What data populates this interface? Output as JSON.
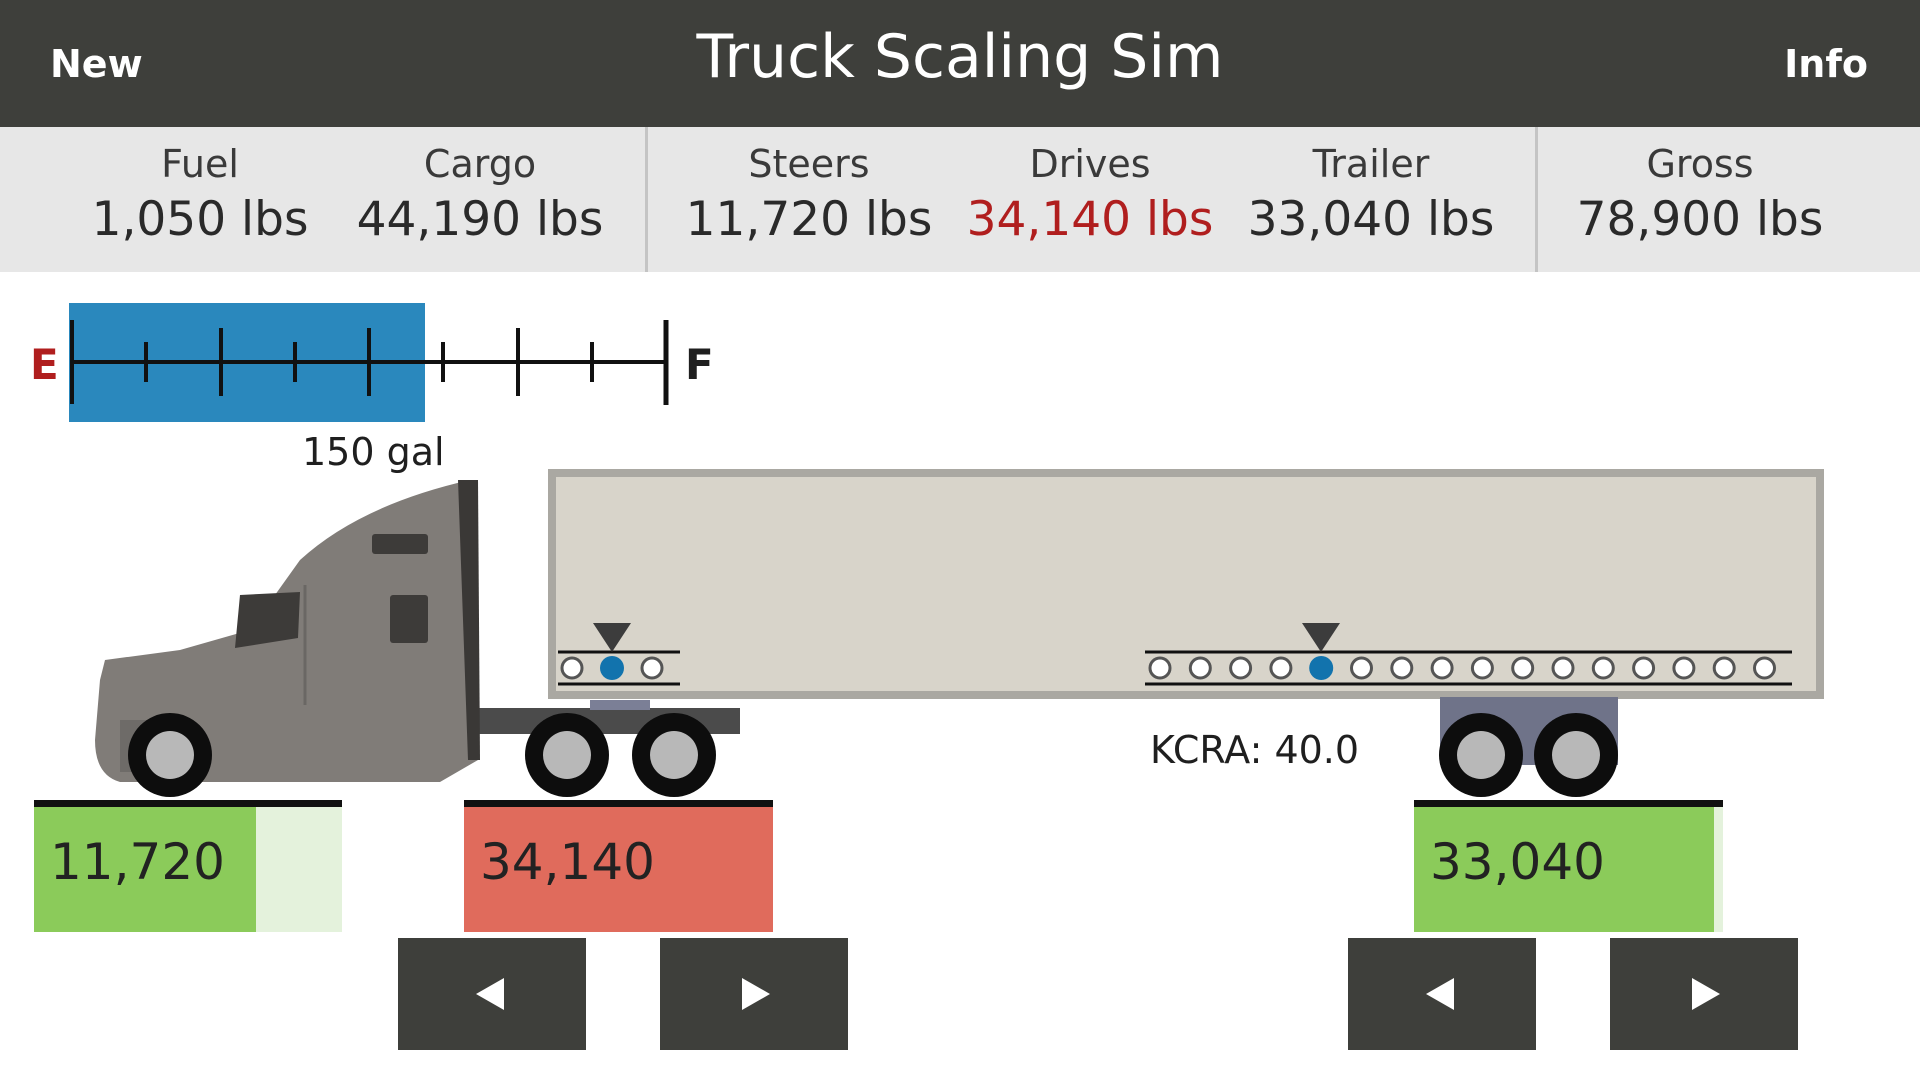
{
  "header": {
    "new_label": "New",
    "title": "Truck Scaling Sim",
    "info_label": "Info"
  },
  "stats": [
    {
      "label": "Fuel",
      "value": "1,050 lbs",
      "over": false
    },
    {
      "label": "Cargo",
      "value": "44,190 lbs",
      "over": false
    },
    {
      "label": "Steers",
      "value": "11,720 lbs",
      "over": false
    },
    {
      "label": "Drives",
      "value": "34,140 lbs",
      "over": true
    },
    {
      "label": "Trailer",
      "value": "33,040 lbs",
      "over": false
    },
    {
      "label": "Gross",
      "value": "78,900 lbs",
      "over": false
    }
  ],
  "fuel": {
    "empty_label": "E",
    "full_label": "F",
    "amount_label": "150 gal",
    "level": 0.6
  },
  "kcra": "KCRA: 40.0",
  "scales": [
    {
      "name": "steers",
      "value": "11,720",
      "status": "ok",
      "fill": 0.72
    },
    {
      "name": "drives",
      "value": "34,140",
      "status": "over",
      "fill": 1.0
    },
    {
      "name": "trailer",
      "value": "33,040",
      "status": "ok",
      "fill": 0.97
    }
  ],
  "colors": {
    "ok": "#8bcb5a",
    "ok_light": "#e4f2dc",
    "over": "#e06b5c",
    "fuel": "#2a88bd",
    "topbar": "#3e3f3b",
    "alert_text": "#b01e1e",
    "hitch_dot": "#1273ad"
  },
  "controls": {
    "fifth_wheel_left": "left-arrow-icon",
    "fifth_wheel_right": "right-arrow-icon",
    "tandem_left": "left-arrow-icon",
    "tandem_right": "right-arrow-icon"
  }
}
